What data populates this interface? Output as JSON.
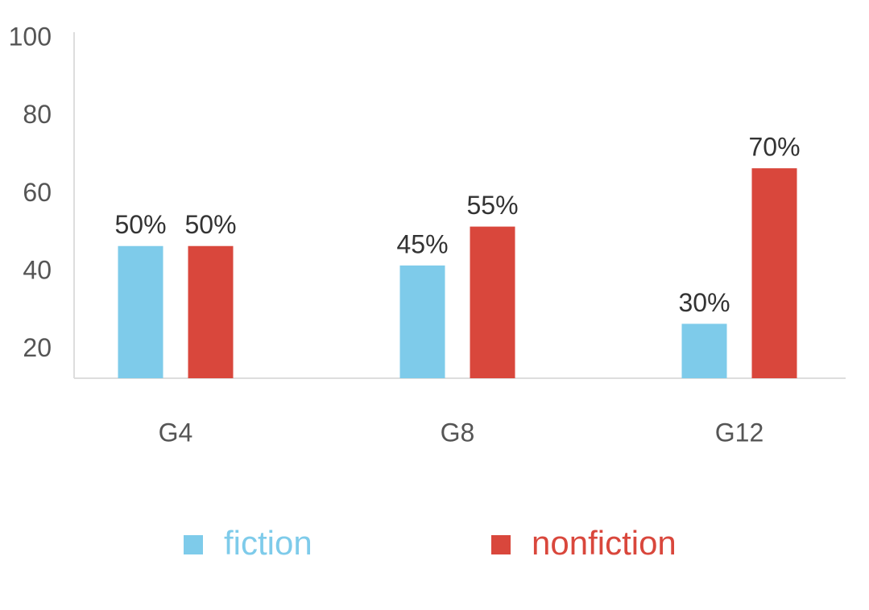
{
  "chart_data": {
    "type": "bar",
    "categories": [
      "G4",
      "G8",
      "G12"
    ],
    "series": [
      {
        "name": "fiction",
        "color": "#7ecbea",
        "values": [
          50,
          45,
          30
        ],
        "value_labels": [
          "50%",
          "45%",
          "30%"
        ]
      },
      {
        "name": "nonfiction",
        "color": "#d9473c",
        "values": [
          50,
          55,
          70
        ],
        "value_labels": [
          "50%",
          "55%",
          "70%"
        ]
      }
    ],
    "ylim": [
      16,
      105
    ],
    "yticks": [
      20,
      40,
      60,
      80,
      100
    ],
    "grid": false
  }
}
